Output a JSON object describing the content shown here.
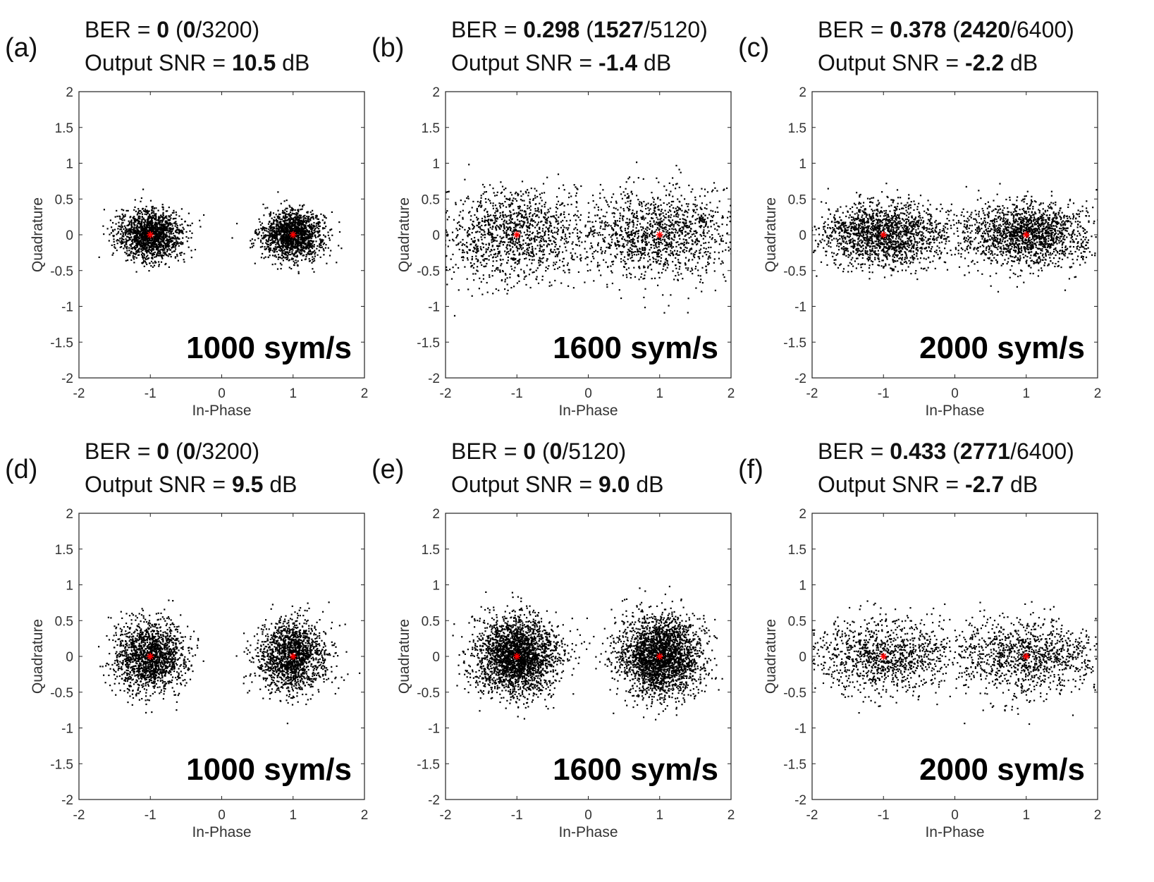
{
  "figure": {
    "panels": [
      {
        "id": "a",
        "label": "(a)",
        "ber_prefix": "BER = ",
        "ber_value": "0",
        "ber_paren_open": " (",
        "ber_errors": "0",
        "ber_total": "/3200)",
        "snr_prefix": "Output SNR = ",
        "snr_value": "10.5",
        "snr_unit": " dB",
        "rate_label": "1000 sym/s"
      },
      {
        "id": "b",
        "label": "(b)",
        "ber_prefix": "BER = ",
        "ber_value": "0.298",
        "ber_paren_open": " (",
        "ber_errors": "1527",
        "ber_total": "/5120)",
        "snr_prefix": "Output SNR = ",
        "snr_value": "-1.4",
        "snr_unit": " dB",
        "rate_label": "1600 sym/s"
      },
      {
        "id": "c",
        "label": "(c)",
        "ber_prefix": "BER = ",
        "ber_value": "0.378",
        "ber_paren_open": " (",
        "ber_errors": "2420",
        "ber_total": "/6400)",
        "snr_prefix": "Output SNR = ",
        "snr_value": "-2.2",
        "snr_unit": " dB",
        "rate_label": "2000 sym/s"
      },
      {
        "id": "d",
        "label": "(d)",
        "ber_prefix": "BER = ",
        "ber_value": "0",
        "ber_paren_open": " (",
        "ber_errors": "0",
        "ber_total": "/3200)",
        "snr_prefix": "Output SNR = ",
        "snr_value": "9.5",
        "snr_unit": " dB",
        "rate_label": "1000 sym/s"
      },
      {
        "id": "e",
        "label": "(e)",
        "ber_prefix": "BER = ",
        "ber_value": "0",
        "ber_paren_open": " (",
        "ber_errors": "0",
        "ber_total": "/5120)",
        "snr_prefix": "Output SNR = ",
        "snr_value": "9.0",
        "snr_unit": " dB",
        "rate_label": "1600 sym/s"
      },
      {
        "id": "f",
        "label": "(f)",
        "ber_prefix": "BER = ",
        "ber_value": "0.433",
        "ber_paren_open": " (",
        "ber_errors": "2771",
        "ber_total": "/6400)",
        "snr_prefix": "Output SNR = ",
        "snr_value": "-2.7",
        "snr_unit": " dB",
        "rate_label": "2000 sym/s"
      }
    ]
  },
  "chart_data": [
    {
      "type": "scatter",
      "panel": "a",
      "xlabel": "In-Phase",
      "ylabel": "Quadrature",
      "xlim": [
        -2,
        2
      ],
      "ylim": [
        -2,
        2
      ],
      "xticks": [
        -2,
        -1,
        0,
        1,
        2
      ],
      "yticks": [
        -2,
        -1.5,
        -1,
        -0.5,
        0,
        0.5,
        1,
        1.5,
        2
      ],
      "marker_color": "#000000",
      "reference_color": "#ff0000",
      "reference_points": [
        [
          -1,
          0
        ],
        [
          1,
          0
        ]
      ],
      "clusters": [
        {
          "center": [
            -1,
            0
          ],
          "spread_x": 0.22,
          "spread_y": 0.17,
          "count": 1600
        },
        {
          "center": [
            1,
            0
          ],
          "spread_x": 0.22,
          "spread_y": 0.17,
          "count": 1600
        }
      ]
    },
    {
      "type": "scatter",
      "panel": "b",
      "xlabel": "In-Phase",
      "ylabel": "Quadrature",
      "xlim": [
        -2,
        2
      ],
      "ylim": [
        -2,
        2
      ],
      "xticks": [
        -2,
        -1,
        0,
        1,
        2
      ],
      "yticks": [
        -2,
        -1.5,
        -1,
        -0.5,
        0,
        0.5,
        1,
        1.5,
        2
      ],
      "marker_color": "#000000",
      "reference_color": "#ff0000",
      "reference_points": [
        [
          -1,
          0
        ],
        [
          1,
          0
        ]
      ],
      "clusters": [
        {
          "center": [
            -1,
            0
          ],
          "spread_x": 0.55,
          "spread_y": 0.32,
          "count": 1300
        },
        {
          "center": [
            1,
            0
          ],
          "spread_x": 0.55,
          "spread_y": 0.32,
          "count": 1300
        }
      ]
    },
    {
      "type": "scatter",
      "panel": "c",
      "xlabel": "In-Phase",
      "ylabel": "Quadrature",
      "xlim": [
        -2,
        2
      ],
      "ylim": [
        -2,
        2
      ],
      "xticks": [
        -2,
        -1,
        0,
        1,
        2
      ],
      "yticks": [
        -2,
        -1.5,
        -1,
        -0.5,
        0,
        0.5,
        1,
        1.5,
        2
      ],
      "marker_color": "#000000",
      "reference_color": "#ff0000",
      "reference_points": [
        [
          -1,
          0
        ],
        [
          1,
          0
        ]
      ],
      "clusters": [
        {
          "center": [
            -1,
            0
          ],
          "spread_x": 0.45,
          "spread_y": 0.22,
          "count": 1700
        },
        {
          "center": [
            1,
            0
          ],
          "spread_x": 0.45,
          "spread_y": 0.22,
          "count": 1700
        }
      ]
    },
    {
      "type": "scatter",
      "panel": "d",
      "xlabel": "In-Phase",
      "ylabel": "Quadrature",
      "xlim": [
        -2,
        2
      ],
      "ylim": [
        -2,
        2
      ],
      "xticks": [
        -2,
        -1,
        0,
        1,
        2
      ],
      "yticks": [
        -2,
        -1.5,
        -1,
        -0.5,
        0,
        0.5,
        1,
        1.5,
        2
      ],
      "marker_color": "#000000",
      "reference_color": "#ff0000",
      "reference_points": [
        [
          -1,
          0
        ],
        [
          1,
          0
        ]
      ],
      "clusters": [
        {
          "center": [
            -1,
            0
          ],
          "spread_x": 0.24,
          "spread_y": 0.24,
          "count": 1600
        },
        {
          "center": [
            1,
            0
          ],
          "spread_x": 0.24,
          "spread_y": 0.24,
          "count": 1600
        }
      ]
    },
    {
      "type": "scatter",
      "panel": "e",
      "xlabel": "In-Phase",
      "ylabel": "Quadrature",
      "xlim": [
        -2,
        2
      ],
      "ylim": [
        -2,
        2
      ],
      "xticks": [
        -2,
        -1,
        0,
        1,
        2
      ],
      "yticks": [
        -2,
        -1.5,
        -1,
        -0.5,
        0,
        0.5,
        1,
        1.5,
        2
      ],
      "marker_color": "#000000",
      "reference_color": "#ff0000",
      "reference_points": [
        [
          -1,
          0
        ],
        [
          1,
          0
        ]
      ],
      "clusters": [
        {
          "center": [
            -1,
            0
          ],
          "spread_x": 0.28,
          "spread_y": 0.27,
          "count": 2560
        },
        {
          "center": [
            1,
            0
          ],
          "spread_x": 0.28,
          "spread_y": 0.27,
          "count": 2560
        }
      ]
    },
    {
      "type": "scatter",
      "panel": "f",
      "xlabel": "In-Phase",
      "ylabel": "Quadrature",
      "xlim": [
        -2,
        2
      ],
      "ylim": [
        -2,
        2
      ],
      "xticks": [
        -2,
        -1,
        0,
        1,
        2
      ],
      "yticks": [
        -2,
        -1.5,
        -1,
        -0.5,
        0,
        0.5,
        1,
        1.5,
        2
      ],
      "marker_color": "#000000",
      "reference_color": "#ff0000",
      "reference_points": [
        [
          -1,
          0
        ],
        [
          1,
          0
        ]
      ],
      "clusters": [
        {
          "center": [
            -1,
            0
          ],
          "spread_x": 0.5,
          "spread_y": 0.26,
          "count": 1100
        },
        {
          "center": [
            1,
            0
          ],
          "spread_x": 0.5,
          "spread_y": 0.26,
          "count": 1100
        }
      ]
    }
  ]
}
